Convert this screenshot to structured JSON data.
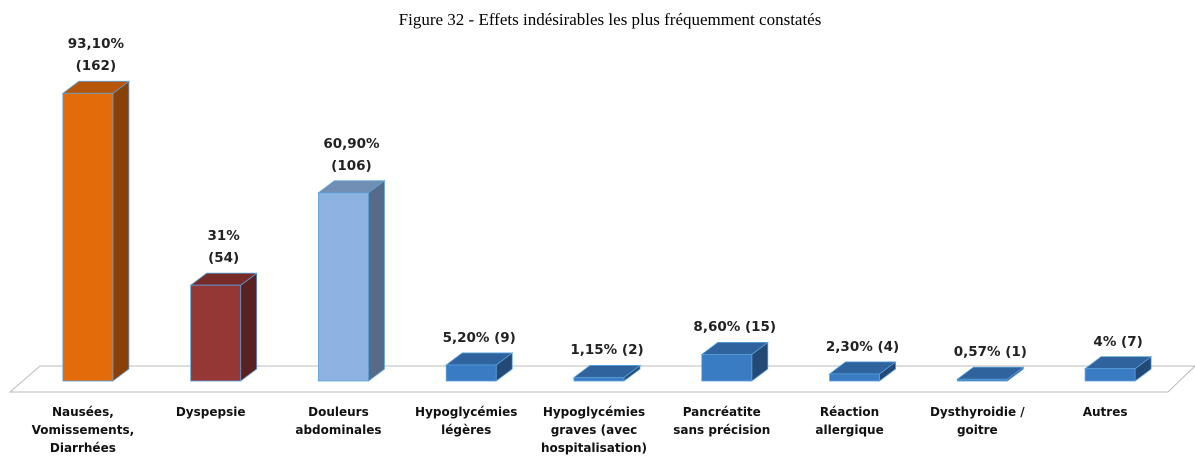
{
  "chart_data": {
    "type": "bar3d",
    "title": "Figure 32 - Effets indésirables les plus fréquemment constatés",
    "categories": [
      "Nausées,\nVomissements,\nDiarrhées",
      "Dyspepsie",
      "Douleurs\nabdominales",
      "Hypoglycémies\nlégères",
      "Hypoglycémies\ngraves (avec\nhospitalisation)",
      "Pancréatite\nsans précision",
      "Réaction\nallergique",
      "Dysthyroidie /\ngoitre",
      "Autres"
    ],
    "values": [
      93.1,
      31,
      60.9,
      5.2,
      1.15,
      8.6,
      2.3,
      0.57,
      4
    ],
    "value_labels": [
      "93,10%\n(162)",
      "31%\n(54)",
      "60,90%\n(106)",
      "5,20% (9)",
      "1,15% (2)",
      "8,60% (15)",
      "2,30% (4)",
      "0,57% (1)",
      "4% (7)"
    ],
    "colors": [
      "#e36c0a",
      "#953735",
      "#8db3e2",
      "#3a7cc4",
      "#3a7cc4",
      "#3a7cc4",
      "#3a7cc4",
      "#3a7cc4",
      "#3a7cc4"
    ],
    "ylim": [
      0,
      100
    ]
  }
}
